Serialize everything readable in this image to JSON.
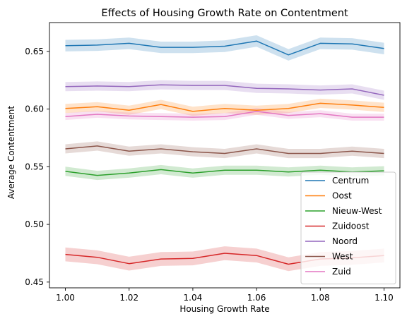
{
  "chart_data": {
    "type": "line",
    "title": "Effects of Housing Growth Rate on Contentment",
    "xlabel": "Housing Growth Rate",
    "ylabel": "Average Contentment",
    "xlim": [
      0.995,
      1.105
    ],
    "ylim": [
      0.445,
      0.675
    ],
    "xticks": [
      1.0,
      1.02,
      1.04,
      1.06,
      1.08,
      1.1
    ],
    "xtick_labels": [
      "1.00",
      "1.02",
      "1.04",
      "1.06",
      "1.08",
      "1.10"
    ],
    "yticks": [
      0.45,
      0.5,
      0.55,
      0.6,
      0.65
    ],
    "ytick_labels": [
      "0.45",
      "0.50",
      "0.55",
      "0.60",
      "0.65"
    ],
    "grid": false,
    "legend_position": "lower-right",
    "x": [
      1.0,
      1.01,
      1.02,
      1.03,
      1.04,
      1.05,
      1.06,
      1.07,
      1.08,
      1.09,
      1.1
    ],
    "series": [
      {
        "name": "Centrum",
        "color": "#1f77b4",
        "values": [
          0.655,
          0.6555,
          0.657,
          0.6535,
          0.6535,
          0.6545,
          0.659,
          0.647,
          0.657,
          0.6565,
          0.6525
        ],
        "ci": 0.005
      },
      {
        "name": "Oost",
        "color": "#ff7f0e",
        "values": [
          0.6005,
          0.602,
          0.599,
          0.604,
          0.598,
          0.6005,
          0.599,
          0.6005,
          0.605,
          0.6035,
          0.6015
        ],
        "ci": 0.004
      },
      {
        "name": "Nieuw-West",
        "color": "#2ca02c",
        "values": [
          0.546,
          0.5425,
          0.5445,
          0.5475,
          0.5445,
          0.547,
          0.547,
          0.5455,
          0.547,
          0.5455,
          0.5465
        ],
        "ci": 0.004
      },
      {
        "name": "Zuidoost",
        "color": "#d62728",
        "values": [
          0.474,
          0.4715,
          0.466,
          0.47,
          0.4705,
          0.475,
          0.473,
          0.4655,
          0.47,
          0.471,
          0.473
        ],
        "ci": 0.006
      },
      {
        "name": "Noord",
        "color": "#9467bd",
        "values": [
          0.6195,
          0.62,
          0.6195,
          0.621,
          0.6205,
          0.6205,
          0.618,
          0.6175,
          0.6165,
          0.6175,
          0.612
        ],
        "ci": 0.004
      },
      {
        "name": "West",
        "color": "#8c564b",
        "values": [
          0.5655,
          0.568,
          0.5635,
          0.5655,
          0.563,
          0.5615,
          0.5655,
          0.5615,
          0.5615,
          0.5635,
          0.5615
        ],
        "ci": 0.004
      },
      {
        "name": "Zuid",
        "color": "#e377c2",
        "values": [
          0.5935,
          0.5955,
          0.594,
          0.5935,
          0.593,
          0.5935,
          0.598,
          0.5945,
          0.596,
          0.593,
          0.593
        ],
        "ci": 0.003
      }
    ]
  }
}
